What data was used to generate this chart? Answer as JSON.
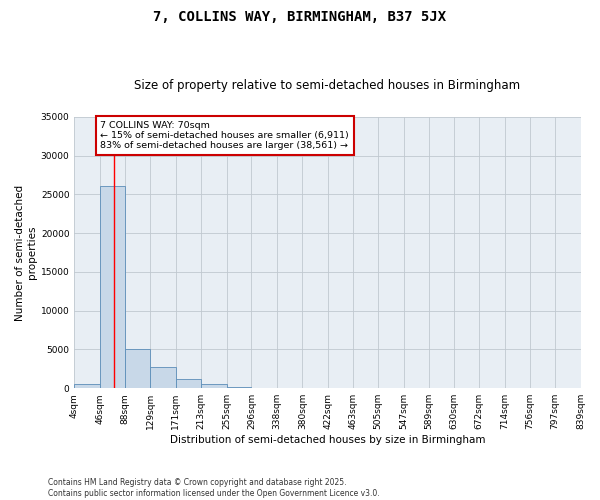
{
  "title": "7, COLLINS WAY, BIRMINGHAM, B37 5JX",
  "subtitle": "Size of property relative to semi-detached houses in Birmingham",
  "xlabel": "Distribution of semi-detached houses by size in Birmingham",
  "ylabel": "Number of semi-detached\nproperties",
  "bin_edges": [
    4,
    46,
    88,
    129,
    171,
    213,
    255,
    296,
    338,
    380,
    422,
    463,
    505,
    547,
    589,
    630,
    672,
    714,
    756,
    797,
    839
  ],
  "bar_heights": [
    500,
    26100,
    5100,
    2700,
    1200,
    500,
    100,
    20,
    5,
    2,
    1,
    0,
    0,
    0,
    0,
    0,
    0,
    0,
    0,
    0
  ],
  "bar_color": "#c8d8e8",
  "bar_edgecolor": "#5b8db8",
  "grid_color": "#c0c8d0",
  "bg_color": "#e8eef4",
  "red_line_x": 70,
  "annotation_text": "7 COLLINS WAY: 70sqm\n← 15% of semi-detached houses are smaller (6,911)\n83% of semi-detached houses are larger (38,561) →",
  "annotation_box_color": "#ffffff",
  "annotation_box_edgecolor": "#cc0000",
  "ylim": [
    0,
    35000
  ],
  "yticks": [
    0,
    5000,
    10000,
    15000,
    20000,
    25000,
    30000,
    35000
  ],
  "footnote": "Contains HM Land Registry data © Crown copyright and database right 2025.\nContains public sector information licensed under the Open Government Licence v3.0.",
  "title_fontsize": 10,
  "subtitle_fontsize": 8.5,
  "tick_fontsize": 6.5,
  "ylabel_fontsize": 7.5,
  "xlabel_fontsize": 7.5,
  "footnote_fontsize": 5.5
}
